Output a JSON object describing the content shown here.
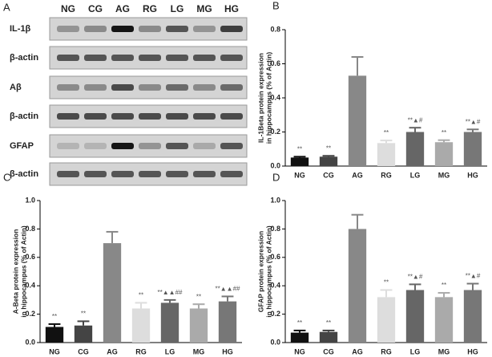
{
  "blot": {
    "label": "A",
    "lanes": [
      "NG",
      "CG",
      "AG",
      "RG",
      "LG",
      "MG",
      "HG"
    ],
    "rows": [
      "IL-1β",
      "β-actin",
      "Aβ",
      "β-actin",
      "GFAP",
      "β-actin"
    ]
  },
  "chart_data": [
    {
      "type": "bar",
      "panel_label": "B",
      "y_label": [
        "IL-1Beta protein expression",
        "in hippocampus (% of Actin)"
      ],
      "categories": [
        "NG",
        "CG",
        "AG",
        "RG",
        "LG",
        "MG",
        "HG"
      ],
      "values": [
        0.05,
        0.055,
        0.53,
        0.135,
        0.2,
        0.14,
        0.2
      ],
      "errors": [
        0.005,
        0.005,
        0.11,
        0.015,
        0.025,
        0.012,
        0.015
      ],
      "annotations": [
        "**",
        "**",
        null,
        "**",
        "**▲#",
        "**",
        "**▲#"
      ],
      "colors": [
        "#111111",
        "#444444",
        "#888888",
        "#dddddd",
        "#666666",
        "#aaaaaa",
        "#777777"
      ],
      "ylim": [
        0,
        0.8
      ],
      "yticks": [
        {
          "value": 0,
          "label": "0.0"
        },
        0.2,
        0.4,
        0.6,
        0.8
      ]
    },
    {
      "type": "bar",
      "panel_label": "C",
      "y_label": [
        "A-Beta protein expression",
        "in hippocampus (% of Actin)"
      ],
      "categories": [
        "NG",
        "CG",
        "AG",
        "RG",
        "LG",
        "MG",
        "HG"
      ],
      "values": [
        0.11,
        0.12,
        0.7,
        0.24,
        0.28,
        0.24,
        0.29
      ],
      "errors": [
        0.02,
        0.03,
        0.08,
        0.04,
        0.02,
        0.03,
        0.035
      ],
      "annotations": [
        "**",
        "**",
        null,
        "**",
        "**▲▲##",
        "**",
        "**▲▲##"
      ],
      "colors": [
        "#111111",
        "#444444",
        "#888888",
        "#dddddd",
        "#666666",
        "#aaaaaa",
        "#777777"
      ],
      "ylim": [
        0,
        1
      ],
      "yticks": [
        {
          "value": 0,
          "label": "0.0"
        },
        0.2,
        0.4,
        0.6,
        0.8,
        {
          "value": 1,
          "label": "1.0"
        }
      ]
    },
    {
      "type": "bar",
      "panel_label": "D",
      "y_label": [
        "GFAP protein expression",
        "in hippocampus (% of Actin)"
      ],
      "categories": [
        "NG",
        "CG",
        "AG",
        "RG",
        "LG",
        "MG",
        "HG"
      ],
      "values": [
        0.07,
        0.075,
        0.8,
        0.32,
        0.37,
        0.32,
        0.37
      ],
      "errors": [
        0.015,
        0.01,
        0.1,
        0.05,
        0.04,
        0.03,
        0.045
      ],
      "annotations": [
        "**",
        "**",
        null,
        "**",
        "**▲#",
        "**",
        "**▲#"
      ],
      "colors": [
        "#111111",
        "#444444",
        "#888888",
        "#dddddd",
        "#666666",
        "#aaaaaa",
        "#777777"
      ],
      "ylim": [
        0,
        1
      ],
      "yticks": [
        {
          "value": 0,
          "label": "0.0"
        },
        0.2,
        0.4,
        0.6,
        0.8,
        {
          "value": 1,
          "label": "1.0"
        }
      ]
    }
  ]
}
